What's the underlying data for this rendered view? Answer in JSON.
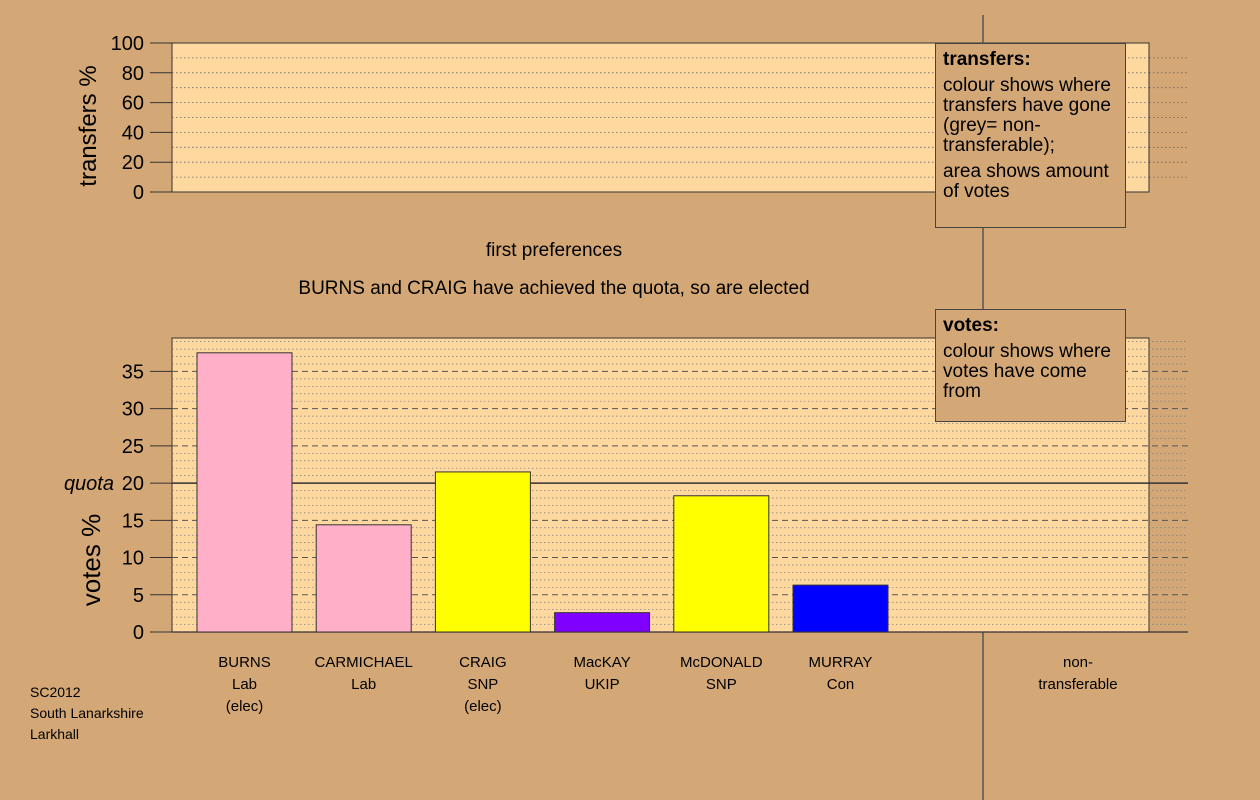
{
  "chart_data": [
    {
      "type": "bar",
      "ylabel": "transfers %",
      "ylim": [
        0,
        100
      ],
      "yticks": [
        0,
        20,
        40,
        60,
        80,
        100
      ],
      "grid": "dotted",
      "series": []
    },
    {
      "type": "bar",
      "ylabel": "votes %",
      "ylim": [
        0,
        39.5
      ],
      "yticks": [
        0,
        5,
        10,
        15,
        20,
        25,
        30,
        35
      ],
      "grid": "dashed-major, dotted-minor",
      "quota": {
        "label": "quota",
        "value": 20
      },
      "candidates": [
        {
          "name": "BURNS",
          "party": "Lab",
          "status": "(elec)",
          "value": 37.5,
          "color": "#ffb0c8"
        },
        {
          "name": "CARMICHAEL",
          "party": "Lab",
          "status": "",
          "value": 14.4,
          "color": "#ffb0c8"
        },
        {
          "name": "CRAIG",
          "party": "SNP",
          "status": "(elec)",
          "value": 21.5,
          "color": "#ffff00"
        },
        {
          "name": "MacKAY",
          "party": "UKIP",
          "status": "",
          "value": 2.6,
          "color": "#8000ff"
        },
        {
          "name": "McDONALD",
          "party": "SNP",
          "status": "",
          "value": 18.3,
          "color": "#ffff00"
        },
        {
          "name": "MURRAY",
          "party": "Con",
          "status": "",
          "value": 6.3,
          "color": "#0000ff"
        }
      ],
      "non_transferable": {
        "line1": "non-",
        "line2": "transferable",
        "value": 0
      }
    }
  ],
  "stage_label": "first preferences",
  "status_message": "BURNS and CRAIG have achieved the quota, so are elected",
  "legend_transfers": {
    "title": "transfers:",
    "para1": "colour shows where transfers have gone (grey= non-transferable);",
    "para2": "area shows amount of votes"
  },
  "legend_votes": {
    "title": "votes:",
    "para1": "colour shows where votes have come from"
  },
  "footer": {
    "line1": "SC2012",
    "line2": "South Lanarkshire",
    "line3": "Larkhall"
  },
  "colors": {
    "background": "#d4a876",
    "plot_area": "#ffd8a0"
  }
}
